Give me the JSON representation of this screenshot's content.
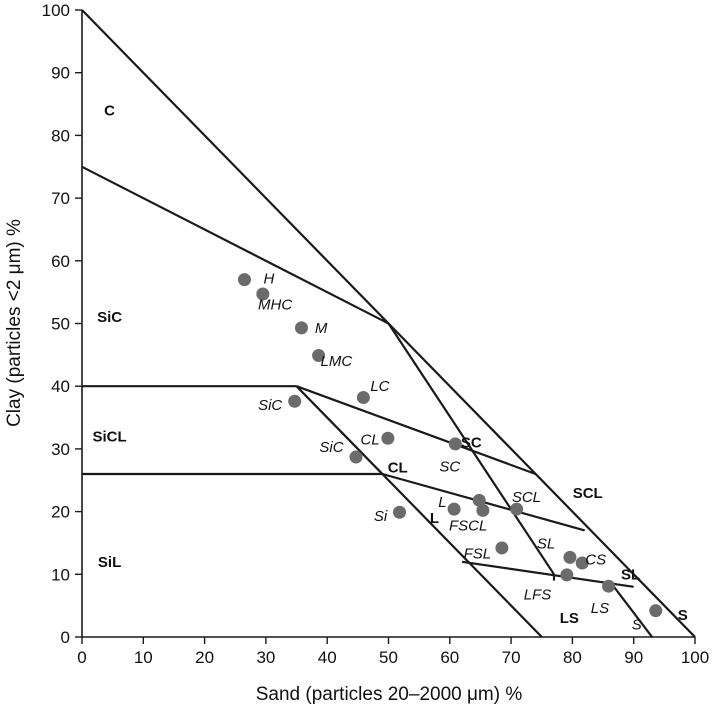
{
  "chart_data": {
    "type": "scatter",
    "xlabel": "Sand (particles 20–2000 μm) %",
    "ylabel": "Clay (particles <2 μm) %",
    "xlim": [
      0,
      100
    ],
    "ylim": [
      0,
      100
    ],
    "xticks": [
      "0",
      "10",
      "20",
      "30",
      "40",
      "50",
      "60",
      "70",
      "80",
      "90",
      "100"
    ],
    "yticks": [
      "0",
      "10",
      "20",
      "30",
      "40",
      "50",
      "60",
      "70",
      "80",
      "90",
      "100"
    ],
    "boundaries": [
      {
        "name": "outer-hypotenuse",
        "points": [
          [
            0,
            100
          ],
          [
            100,
            0
          ]
        ]
      },
      {
        "name": "c-sic-line",
        "points": [
          [
            0,
            75
          ],
          [
            50,
            50
          ]
        ]
      },
      {
        "name": "sic-sicl-line",
        "points": [
          [
            0,
            40
          ],
          [
            35,
            40
          ]
        ]
      },
      {
        "name": "sicl-sil-line",
        "points": [
          [
            0,
            26
          ],
          [
            49,
            26
          ]
        ]
      },
      {
        "name": "silt-loam-line",
        "points": [
          [
            35,
            40
          ],
          [
            75,
            0
          ]
        ]
      },
      {
        "name": "lc-sc-line",
        "points": [
          [
            35,
            40
          ],
          [
            74,
            26
          ]
        ]
      },
      {
        "name": "c-sc-line",
        "points": [
          [
            50,
            50
          ],
          [
            77,
            10
          ]
        ]
      },
      {
        "name": "cl-l-line",
        "points": [
          [
            49,
            26
          ],
          [
            82,
            17
          ]
        ]
      },
      {
        "name": "fsl-sl-line",
        "points": [
          [
            62,
            12
          ],
          [
            90,
            8
          ]
        ]
      },
      {
        "name": "sl-ls-line",
        "points": [
          [
            86,
            9
          ],
          [
            93,
            0
          ]
        ]
      },
      {
        "name": "ls-s-line",
        "points": [
          [
            77,
            10
          ],
          [
            77,
            9
          ]
        ]
      }
    ],
    "region_labels": [
      {
        "text": "C",
        "x": 4.5,
        "y": 84
      },
      {
        "text": "SiC",
        "x": 4.5,
        "y": 51
      },
      {
        "text": "SiCL",
        "x": 4.5,
        "y": 32
      },
      {
        "text": "SiL",
        "x": 4.5,
        "y": 12
      },
      {
        "text": "CL",
        "x": 51.5,
        "y": 27
      },
      {
        "text": "L",
        "x": 57.5,
        "y": 19
      },
      {
        "text": "SC",
        "x": 63.5,
        "y": 31
      },
      {
        "text": "SCL",
        "x": 82.5,
        "y": 23
      },
      {
        "text": "SL",
        "x": 89.5,
        "y": 10
      },
      {
        "text": "LS",
        "x": 79.5,
        "y": 3
      },
      {
        "text": "S",
        "x": 98,
        "y": 3.5
      }
    ],
    "series": [
      {
        "name": "samples",
        "points": [
          {
            "label": "H",
            "x": 26.5,
            "y": 57,
            "lx": 30.5,
            "ly": 57.2
          },
          {
            "label": "MHC",
            "x": 29.5,
            "y": 54.7,
            "lx": 31.5,
            "ly": 53
          },
          {
            "label": "M",
            "x": 35.8,
            "y": 49.3,
            "lx": 39,
            "ly": 49.3
          },
          {
            "label": "LMC",
            "x": 38.6,
            "y": 44.9,
            "lx": 41.5,
            "ly": 44
          },
          {
            "label": "LC",
            "x": 45.9,
            "y": 38.2,
            "lx": 48.6,
            "ly": 40
          },
          {
            "label": "SiC",
            "x": 34.7,
            "y": 37.6,
            "lx": 30.7,
            "ly": 37
          },
          {
            "label": "CL",
            "x": 49.9,
            "y": 31.7,
            "lx": 47,
            "ly": 31.5
          },
          {
            "label": "SiC",
            "x": 44.7,
            "y": 28.7,
            "lx": 40.7,
            "ly": 30.3
          },
          {
            "label": "SC",
            "x": 60.9,
            "y": 30.8,
            "lx": 60,
            "ly": 27.2
          },
          {
            "label": "Si",
            "x": 51.8,
            "y": 19.9,
            "lx": 48.7,
            "ly": 19.3
          },
          {
            "label": "L",
            "x": 60.7,
            "y": 20.4,
            "lx": 58.8,
            "ly": 21.5
          },
          {
            "label": "FSCL",
            "x": 64.8,
            "y": 21.8,
            "lx": 63,
            "ly": 17.8
          },
          {
            "label": "FSCL",
            "x": 65.4,
            "y": 20.2,
            "lx": 63,
            "ly": 17.8
          },
          {
            "label": "SCL",
            "x": 70.9,
            "y": 20.4,
            "lx": 72.5,
            "ly": 22.3
          },
          {
            "label": "FSL",
            "x": 68.5,
            "y": 14.2,
            "lx": 64.5,
            "ly": 13.3
          },
          {
            "label": "SL",
            "x": 79.6,
            "y": 12.7,
            "lx": 75.7,
            "ly": 14.9
          },
          {
            "label": "CS",
            "x": 81.6,
            "y": 11.8,
            "lx": 83.8,
            "ly": 12.4
          },
          {
            "label": "LFS",
            "x": 79.1,
            "y": 9.9,
            "lx": 74.3,
            "ly": 6.8
          },
          {
            "label": "LS",
            "x": 85.9,
            "y": 8.1,
            "lx": 84.5,
            "ly": 4.6
          },
          {
            "label": "S",
            "x": 93.6,
            "y": 4.2,
            "lx": 90.5,
            "ly": 2
          }
        ]
      }
    ]
  }
}
